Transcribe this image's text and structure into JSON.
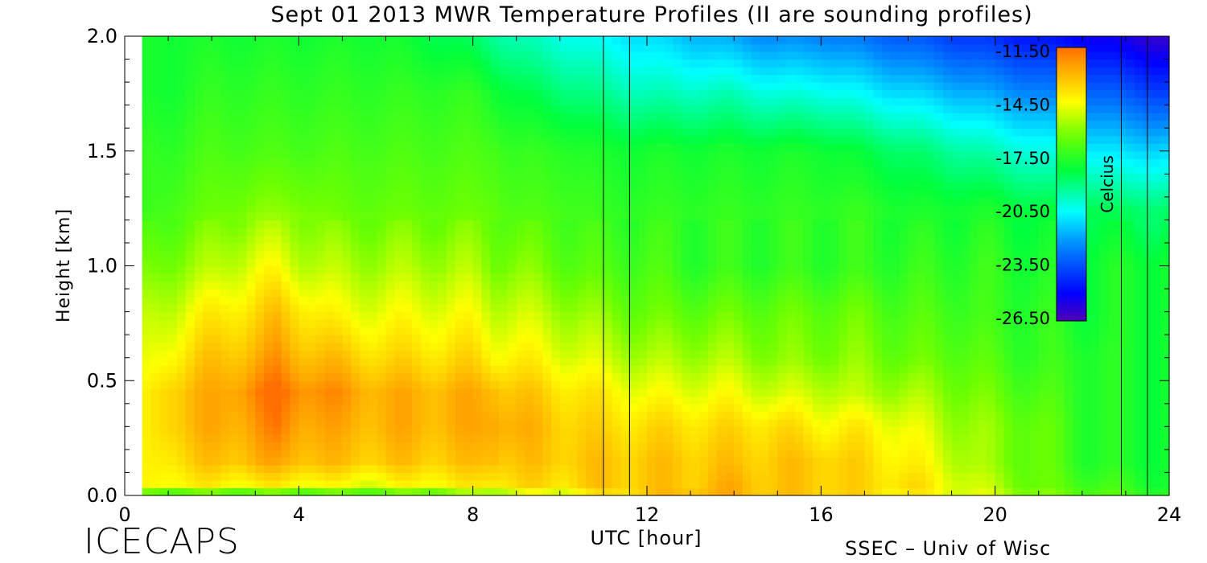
{
  "chart_data": {
    "type": "heatmap",
    "title": "Sept 01 2013 MWR Temperature Profiles (II are sounding profiles)",
    "xlabel": "UTC [hour]",
    "ylabel": "Height [km]",
    "xlim": [
      0,
      24
    ],
    "ylim": [
      0,
      2.0
    ],
    "x_ticks": [
      "0",
      "4",
      "8",
      "12",
      "16",
      "20",
      "24"
    ],
    "y_ticks": [
      "0.0",
      "0.5",
      "1.0",
      "1.5",
      "2.0"
    ],
    "data_x_range": [
      0.4,
      24.0
    ],
    "colorbar": {
      "label": "Celcius",
      "ticks": [
        "-11.50",
        "-14.50",
        "-17.50",
        "-20.50",
        "-23.50",
        "-26.50"
      ],
      "range": [
        -27.5,
        -11.0
      ]
    },
    "sounding_markers_hours": [
      11.0,
      11.6,
      22.9,
      23.5
    ],
    "temperature_grid": {
      "x_hours": [
        0.4,
        1,
        2,
        3,
        3.5,
        4,
        5,
        6,
        7,
        8,
        8.5,
        9,
        10,
        11,
        12,
        13,
        14,
        15,
        16,
        17,
        18,
        19,
        20,
        21,
        22,
        23,
        24
      ],
      "y_km": [
        0.0,
        0.05,
        0.15,
        0.3,
        0.45,
        0.6,
        0.8,
        1.0,
        1.25,
        1.5,
        1.75,
        2.0
      ],
      "values_celsius": [
        [
          -17.5,
          -17.5,
          -17.5,
          -17.5,
          -17.5,
          -17.5,
          -17.5,
          -17.5,
          -17.0,
          -16.5,
          -16.0,
          -15.5,
          -15.0,
          -14.0,
          -13.0,
          -12.5,
          -12.5,
          -13.0,
          -13.0,
          -13.5,
          -14.0,
          -14.5,
          -15.0,
          -16.0,
          -16.5,
          -17.0,
          -17.5
        ],
        [
          -14.5,
          -14.0,
          -14.0,
          -14.0,
          -14.0,
          -14.0,
          -14.5,
          -14.5,
          -14.0,
          -14.0,
          -13.5,
          -13.5,
          -13.5,
          -13.0,
          -13.0,
          -13.0,
          -12.5,
          -13.0,
          -13.0,
          -13.5,
          -13.5,
          -14.5,
          -15.5,
          -16.5,
          -17.0,
          -17.5,
          -18.0
        ],
        [
          -14.5,
          -13.5,
          -13.0,
          -12.5,
          -12.5,
          -12.5,
          -13.0,
          -13.0,
          -13.0,
          -13.0,
          -12.5,
          -13.0,
          -13.0,
          -13.0,
          -13.0,
          -13.0,
          -13.0,
          -13.0,
          -13.0,
          -13.5,
          -14.0,
          -15.0,
          -16.0,
          -16.5,
          -17.5,
          -18.0,
          -18.0
        ],
        [
          -14.5,
          -13.0,
          -12.5,
          -12.0,
          -11.5,
          -12.0,
          -12.5,
          -12.5,
          -12.5,
          -12.5,
          -12.0,
          -12.5,
          -13.0,
          -13.5,
          -13.5,
          -13.5,
          -13.5,
          -13.5,
          -14.0,
          -14.0,
          -14.5,
          -15.5,
          -16.0,
          -16.5,
          -17.5,
          -18.0,
          -18.0
        ],
        [
          -14.5,
          -13.0,
          -12.5,
          -11.5,
          -11.0,
          -11.5,
          -12.0,
          -12.5,
          -12.5,
          -12.5,
          -12.5,
          -13.0,
          -13.5,
          -14.0,
          -14.5,
          -14.5,
          -14.5,
          -15.0,
          -15.0,
          -15.5,
          -15.5,
          -16.0,
          -16.5,
          -17.0,
          -17.5,
          -18.0,
          -18.0
        ],
        [
          -15.0,
          -14.0,
          -13.0,
          -12.5,
          -12.0,
          -12.5,
          -13.0,
          -13.5,
          -13.5,
          -13.5,
          -14.0,
          -14.0,
          -14.5,
          -15.0,
          -15.5,
          -15.5,
          -15.5,
          -16.0,
          -16.0,
          -16.0,
          -16.5,
          -16.5,
          -17.0,
          -17.5,
          -17.5,
          -18.0,
          -18.0
        ],
        [
          -15.5,
          -15.0,
          -14.0,
          -13.5,
          -13.0,
          -13.5,
          -14.5,
          -14.5,
          -14.5,
          -14.5,
          -15.0,
          -15.0,
          -15.5,
          -16.0,
          -16.5,
          -16.5,
          -16.5,
          -16.5,
          -16.5,
          -16.5,
          -17.0,
          -17.0,
          -17.5,
          -17.5,
          -18.0,
          -18.0,
          -18.0
        ],
        [
          -16.5,
          -16.0,
          -15.5,
          -14.5,
          -14.5,
          -15.0,
          -15.5,
          -15.5,
          -15.5,
          -15.5,
          -16.0,
          -16.0,
          -16.5,
          -17.0,
          -17.0,
          -17.5,
          -17.5,
          -17.5,
          -17.5,
          -17.5,
          -17.5,
          -17.5,
          -17.5,
          -18.0,
          -18.0,
          -18.0,
          -18.0
        ],
        [
          -17.5,
          -17.0,
          -16.5,
          -16.0,
          -16.0,
          -16.0,
          -16.5,
          -16.5,
          -16.5,
          -16.5,
          -16.5,
          -17.0,
          -17.0,
          -17.5,
          -17.5,
          -17.5,
          -17.5,
          -17.5,
          -17.5,
          -17.5,
          -18.0,
          -18.0,
          -18.0,
          -18.5,
          -18.5,
          -19.0,
          -19.0
        ],
        [
          -17.5,
          -17.5,
          -17.0,
          -17.0,
          -17.0,
          -17.0,
          -17.0,
          -17.0,
          -17.0,
          -17.0,
          -17.0,
          -17.5,
          -17.5,
          -18.0,
          -18.0,
          -18.0,
          -18.0,
          -18.0,
          -18.0,
          -18.5,
          -19.0,
          -19.5,
          -20.0,
          -20.5,
          -21.0,
          -21.5,
          -21.5
        ],
        [
          -18.0,
          -18.0,
          -17.5,
          -17.5,
          -17.5,
          -17.5,
          -17.5,
          -17.5,
          -17.5,
          -17.5,
          -18.0,
          -18.5,
          -19.0,
          -19.5,
          -20.0,
          -20.0,
          -20.0,
          -20.5,
          -20.5,
          -21.0,
          -21.5,
          -22.0,
          -22.5,
          -23.0,
          -23.5,
          -24.0,
          -24.5
        ],
        [
          -18.0,
          -18.0,
          -18.0,
          -18.0,
          -18.0,
          -18.0,
          -18.0,
          -18.0,
          -18.5,
          -19.0,
          -19.5,
          -20.0,
          -20.5,
          -21.0,
          -21.5,
          -22.0,
          -22.5,
          -23.0,
          -23.0,
          -23.5,
          -24.0,
          -24.5,
          -25.0,
          -25.5,
          -26.0,
          -26.5,
          -27.0
        ]
      ]
    }
  },
  "footer": {
    "site": "ICECAPS",
    "credit": "SSEC – Univ of Wisc"
  }
}
